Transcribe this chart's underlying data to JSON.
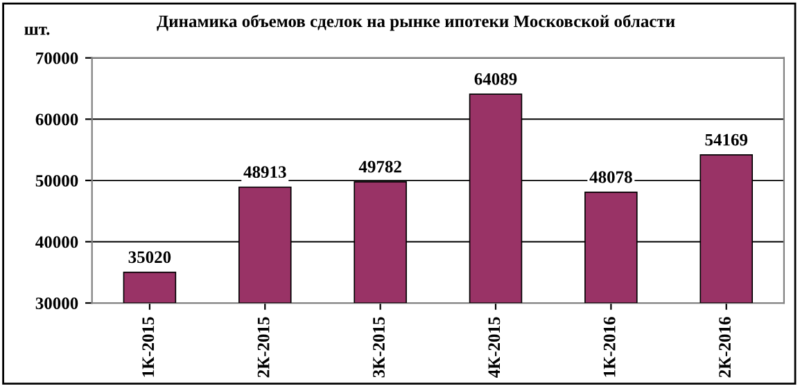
{
  "chart_data": {
    "type": "bar",
    "title": "Динамика объемов сделок на рынке ипотеки Московской области",
    "ylabel": "шт.",
    "categories": [
      "1К-2015",
      "2К-2015",
      "3К-2015",
      "4К-2015",
      "1К-2016",
      "2К-2016"
    ],
    "values": [
      35020,
      48913,
      49782,
      64089,
      48078,
      54169
    ],
    "color": "#993366",
    "ylim": [
      30000,
      70000
    ],
    "yticks": [
      30000,
      40000,
      50000,
      60000,
      70000
    ],
    "grid": "y",
    "data_labels": true
  }
}
